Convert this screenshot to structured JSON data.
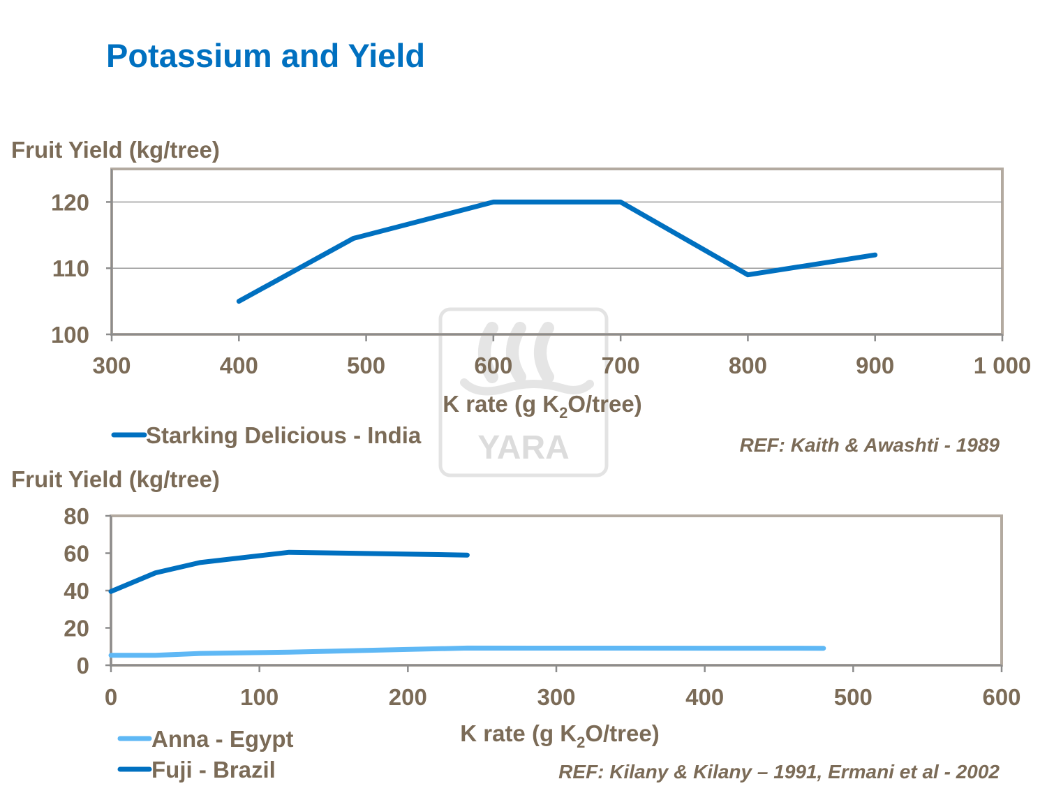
{
  "title": "Potassium and Yield",
  "watermark": "YARA",
  "colors": {
    "title": "#0070c0",
    "text": "#7b6b57",
    "frame": "#b3aaa0",
    "grid": "#9a9a9a",
    "dark_blue": "#0070c0",
    "light_blue": "#5fb8f5"
  },
  "chart_data": [
    {
      "type": "line",
      "ylabel": "Fruit Yield (kg/tree)",
      "xlabel_main": "K rate (g K",
      "xlabel_sub": "2",
      "xlabel_tail": "O/tree)",
      "xlim": [
        300,
        1000
      ],
      "ylim": [
        100,
        125
      ],
      "xticks": [
        300,
        400,
        500,
        600,
        700,
        800,
        900,
        1000
      ],
      "xtick_labels": [
        "300",
        "400",
        "500",
        "600",
        "700",
        "800",
        "900",
        "1 000"
      ],
      "yticks": [
        100,
        110,
        120
      ],
      "ytick_labels": [
        "100",
        "110",
        "120"
      ],
      "grid": true,
      "series": [
        {
          "name": "Starking Delicious - India",
          "color": "#0070c0",
          "x": [
            400,
            490,
            600,
            700,
            800,
            900
          ],
          "y": [
            105,
            114.5,
            120,
            120,
            109,
            112
          ]
        }
      ],
      "reference": "REF: Kaith & Awashti - 1989"
    },
    {
      "type": "line",
      "ylabel": "Fruit Yield (kg/tree)",
      "xlabel_main": "K rate (g K",
      "xlabel_sub": "2",
      "xlabel_tail": "O/tree)",
      "xlim": [
        0,
        600
      ],
      "ylim": [
        0,
        80
      ],
      "xticks": [
        0,
        100,
        200,
        300,
        400,
        500,
        600
      ],
      "xtick_labels": [
        "0",
        "100",
        "200",
        "300",
        "400",
        "500",
        "600"
      ],
      "yticks": [
        0,
        20,
        40,
        60,
        80
      ],
      "ytick_labels": [
        "0",
        "20",
        "40",
        "60",
        "80"
      ],
      "grid": false,
      "series": [
        {
          "name": "Anna - Egypt",
          "color": "#5fb8f5",
          "x": [
            0,
            30,
            60,
            120,
            240,
            480
          ],
          "y": [
            5.3,
            5.3,
            6.3,
            7,
            9.2,
            9.1
          ]
        },
        {
          "name": "Fuji - Brazil",
          "color": "#0070c0",
          "x": [
            0,
            30,
            60,
            120,
            240
          ],
          "y": [
            39.5,
            49.5,
            55,
            60.5,
            59
          ]
        }
      ],
      "reference": "REF: Kilany & Kilany – 1991, Ermani et al - 2002"
    }
  ]
}
